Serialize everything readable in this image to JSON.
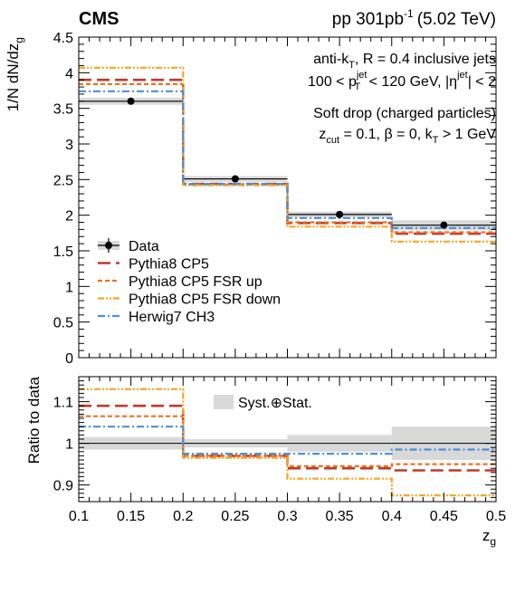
{
  "header": {
    "experiment": "CMS",
    "collision": "pp 301",
    "lumi_unit": "pb",
    "lumi_exp": "-1",
    "energy": "(5.02 TeV)"
  },
  "annotations": {
    "l1": {
      "a": "anti-k",
      "b": "T",
      "c": ", R = 0.4 inclusive jets"
    },
    "l2": {
      "a": "100 < p",
      "sup": "jet",
      "sub": "T",
      "b": " < 120 GeV, |η",
      "sup2": "jet",
      "c": "| < 2"
    },
    "l3": "Soft drop (charged particles)",
    "l4": {
      "a": "z",
      "sub1": "cut",
      "b": " = 0.1, β = 0, k",
      "sub2": "T",
      "c": " > 1 GeV"
    }
  },
  "colors": {
    "data": "#000000",
    "cp5": "#c0392b",
    "fsr_up": "#e8731e",
    "fsr_down": "#f5a623",
    "herwig": "#4a90d9",
    "band": "#d9d9d9"
  },
  "chart_data": [
    {
      "type": "line",
      "panel": "top",
      "ylabel": {
        "a": "1/N dN/dz",
        "sub": "g"
      },
      "xlim": [
        0.1,
        0.5
      ],
      "ylim": [
        0,
        4.5
      ],
      "bin_edges": [
        0.1,
        0.2,
        0.3,
        0.4,
        0.5
      ],
      "yticks": [
        "0",
        "0.5",
        "1",
        "1.5",
        "2",
        "2.5",
        "3",
        "3.5",
        "4",
        "4.5"
      ],
      "legend_placement": "left-center",
      "data": {
        "name": "Data",
        "x": [
          0.15,
          0.25,
          0.35,
          0.45
        ],
        "y": [
          3.6,
          2.51,
          2.01,
          1.86
        ],
        "err": [
          0.05,
          0.04,
          0.04,
          0.07
        ]
      },
      "series": [
        {
          "name": "Pythia8 CP5",
          "values": [
            3.9,
            2.44,
            1.89,
            1.74
          ]
        },
        {
          "name": "Pythia8 CP5 FSR up",
          "values": [
            3.84,
            2.43,
            1.9,
            1.76
          ]
        },
        {
          "name": "Pythia8 CP5 FSR down",
          "values": [
            4.07,
            2.42,
            1.84,
            1.63
          ]
        },
        {
          "name": "Herwig7 CH3",
          "values": [
            3.74,
            2.44,
            1.96,
            1.82
          ]
        }
      ]
    },
    {
      "type": "line",
      "panel": "bottom",
      "ylabel": "Ratio to data",
      "xlabel": {
        "a": "z",
        "sub": "g"
      },
      "xlim": [
        0.1,
        0.5
      ],
      "ylim": [
        0.86,
        1.16
      ],
      "bin_edges": [
        0.1,
        0.2,
        0.3,
        0.4,
        0.5
      ],
      "xticks": [
        "0.1",
        "0.15",
        "0.2",
        "0.25",
        "0.3",
        "0.35",
        "0.4",
        "0.45",
        "0.5"
      ],
      "yticks": [
        "0.9",
        "1",
        "1.1"
      ],
      "legend_label": "Syst.⊕Stat.",
      "band": {
        "lo": [
          0.985,
          0.99,
          0.98,
          0.96
        ],
        "hi": [
          1.015,
          1.01,
          1.02,
          1.04
        ]
      },
      "series": [
        {
          "name": "Pythia8 CP5",
          "values": [
            1.09,
            0.97,
            0.94,
            0.935
          ]
        },
        {
          "name": "Pythia8 CP5 FSR up",
          "values": [
            1.065,
            0.97,
            0.945,
            0.95
          ]
        },
        {
          "name": "Pythia8 CP5 FSR down",
          "values": [
            1.13,
            0.965,
            0.915,
            0.875
          ]
        },
        {
          "name": "Herwig7 CH3",
          "values": [
            1.04,
            0.975,
            0.975,
            0.985
          ]
        }
      ]
    }
  ]
}
